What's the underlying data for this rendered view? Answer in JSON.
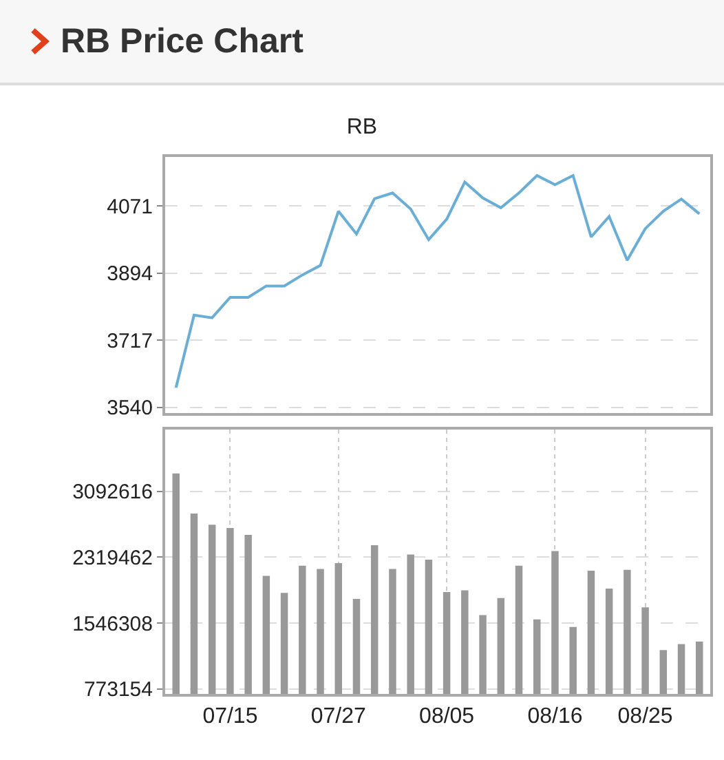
{
  "chart_data": [
    {
      "type": "line",
      "title": "RB Price Chart",
      "subtitle": "RB",
      "categories": [
        null,
        null,
        null,
        null,
        null,
        null,
        null,
        null,
        null,
        null,
        null,
        null,
        null,
        null,
        null,
        null,
        null,
        null,
        null,
        null,
        null,
        null,
        null,
        null,
        null,
        null,
        null,
        null,
        null,
        null
      ],
      "series": [
        {
          "color": "#6aaed6",
          "values": [
            3592,
            3783,
            3776,
            3830,
            3830,
            3860,
            3860,
            3889,
            3914,
            4057,
            3997,
            4090,
            4105,
            4063,
            3982,
            4036,
            4134,
            4092,
            4066,
            4105,
            4151,
            4127,
            4151,
            3989,
            4043,
            3928,
            4011,
            4057,
            4089,
            4050
          ]
        }
      ],
      "ylim": [
        3525,
        4200
      ],
      "yticks": [
        3540,
        3717,
        3894,
        4071
      ],
      "grid": "y",
      "tick_labels": "y",
      "marker": "none",
      "line_style": "solid",
      "legend": false
    },
    {
      "type": "bar",
      "categories": [
        null,
        null,
        null,
        "07/15",
        null,
        null,
        null,
        null,
        null,
        "07/27",
        null,
        null,
        null,
        null,
        null,
        "08/05",
        null,
        null,
        null,
        null,
        null,
        "08/16",
        null,
        null,
        null,
        null,
        "08/25",
        null,
        null,
        null
      ],
      "series": [
        {
          "color": "#999999",
          "values": [
            3300000,
            2830000,
            2700000,
            2660000,
            2580000,
            2100000,
            1900000,
            2220000,
            2180000,
            2250000,
            1830000,
            2460000,
            2180000,
            2350000,
            2290000,
            1910000,
            1930000,
            1640000,
            1840000,
            2220000,
            1590000,
            2390000,
            1500000,
            2160000,
            1950000,
            2170000,
            1730000,
            1230000,
            1300000,
            1330000
          ]
        }
      ],
      "ylim": [
        716000,
        3815000
      ],
      "yticks": [
        773154,
        1546308,
        2319462,
        3092616
      ],
      "grid": true,
      "legend": false
    }
  ]
}
